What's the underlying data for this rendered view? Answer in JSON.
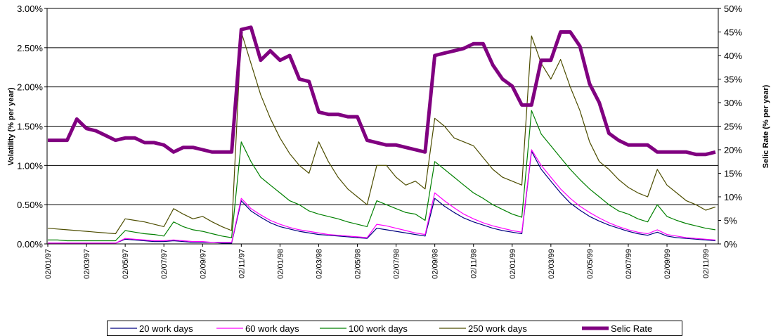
{
  "chart_data": {
    "type": "line",
    "y_label": "Volatility (% per year)",
    "y2_label": "Selic Rate (% per year)",
    "categories": [
      "02/01/97",
      null,
      null,
      null,
      "02/03/97",
      null,
      null,
      null,
      "02/05/97",
      null,
      null,
      null,
      "02/07/97",
      null,
      null,
      null,
      "02/09/97",
      null,
      null,
      null,
      "02/11/97",
      null,
      null,
      null,
      "02/01/98",
      null,
      null,
      null,
      "02/03/98",
      null,
      null,
      null,
      "02/05/98",
      null,
      null,
      null,
      "02/07/98",
      null,
      null,
      null,
      "02/09/98",
      null,
      null,
      null,
      "02/11/98",
      null,
      null,
      null,
      "02/01/99",
      null,
      null,
      null,
      "02/03/99",
      null,
      null,
      null,
      "02/05/99",
      null,
      null,
      null,
      "02/07/99",
      null,
      null,
      null,
      "02/09/99",
      null,
      null,
      null,
      "02/11/99",
      null
    ],
    "ylim": [
      0,
      3
    ],
    "yticks": [
      {
        "value": 0,
        "label": "0.00%"
      },
      {
        "value": 0.5,
        "label": "0.50%"
      },
      {
        "value": 1,
        "label": "1.00%"
      },
      {
        "value": 1.5,
        "label": "1.50%"
      },
      {
        "value": 2,
        "label": "2.00%"
      },
      {
        "value": 2.5,
        "label": "2.50%"
      },
      {
        "value": 3,
        "label": "3.00%"
      }
    ],
    "y2lim": [
      0,
      50
    ],
    "y2ticks": [
      {
        "value": 0,
        "label": "0%"
      },
      {
        "value": 5,
        "label": "5%"
      },
      {
        "value": 10,
        "label": "10%"
      },
      {
        "value": 15,
        "label": "15%"
      },
      {
        "value": 20,
        "label": "20%"
      },
      {
        "value": 25,
        "label": "25%"
      },
      {
        "value": 30,
        "label": "30%"
      },
      {
        "value": 35,
        "label": "35%"
      },
      {
        "value": 40,
        "label": "40%"
      },
      {
        "value": 45,
        "label": "45%"
      },
      {
        "value": 50,
        "label": "50%"
      }
    ],
    "grid": true,
    "legend": "bottom",
    "series": [
      {
        "name": "20 work days",
        "color": "#000080",
        "width": 1.2,
        "values": [
          0.01,
          0.01,
          0.01,
          0.01,
          0.01,
          0.01,
          0.01,
          0.01,
          0.06,
          0.05,
          0.04,
          0.03,
          0.03,
          0.04,
          0.03,
          0.02,
          0.02,
          0.02,
          0.01,
          0.01,
          0.55,
          0.42,
          0.34,
          0.27,
          0.22,
          0.19,
          0.16,
          0.14,
          0.12,
          0.11,
          0.1,
          0.09,
          0.08,
          0.07,
          0.2,
          0.18,
          0.16,
          0.14,
          0.12,
          0.1,
          0.58,
          0.48,
          0.4,
          0.33,
          0.28,
          0.24,
          0.2,
          0.17,
          0.15,
          0.13,
          1.18,
          0.95,
          0.8,
          0.65,
          0.52,
          0.43,
          0.35,
          0.29,
          0.24,
          0.2,
          0.16,
          0.13,
          0.11,
          0.15,
          0.1,
          0.08,
          0.07,
          0.06,
          0.05,
          0.04
        ]
      },
      {
        "name": "60 work days",
        "color": "#ff00ff",
        "width": 1.2,
        "values": [
          0.01,
          0.01,
          0.01,
          0.01,
          0.01,
          0.01,
          0.01,
          0.01,
          0.07,
          0.06,
          0.05,
          0.04,
          0.04,
          0.05,
          0.04,
          0.03,
          0.03,
          0.02,
          0.02,
          0.02,
          0.58,
          0.45,
          0.37,
          0.3,
          0.25,
          0.21,
          0.18,
          0.16,
          0.14,
          0.12,
          0.11,
          0.1,
          0.09,
          0.08,
          0.25,
          0.23,
          0.2,
          0.17,
          0.14,
          0.12,
          0.65,
          0.55,
          0.46,
          0.38,
          0.32,
          0.27,
          0.23,
          0.2,
          0.17,
          0.15,
          1.2,
          1.0,
          0.85,
          0.7,
          0.58,
          0.48,
          0.4,
          0.33,
          0.27,
          0.22,
          0.18,
          0.15,
          0.13,
          0.18,
          0.12,
          0.1,
          0.08,
          0.07,
          0.06,
          0.05
        ]
      },
      {
        "name": "100 work days",
        "color": "#008000",
        "width": 1.2,
        "values": [
          0.05,
          0.05,
          0.04,
          0.04,
          0.04,
          0.04,
          0.04,
          0.04,
          0.17,
          0.15,
          0.13,
          0.12,
          0.1,
          0.28,
          0.22,
          0.18,
          0.16,
          0.13,
          0.1,
          0.08,
          1.3,
          1.05,
          0.85,
          0.75,
          0.65,
          0.55,
          0.5,
          0.42,
          0.38,
          0.35,
          0.32,
          0.28,
          0.25,
          0.22,
          0.55,
          0.5,
          0.45,
          0.4,
          0.38,
          0.3,
          1.05,
          0.95,
          0.85,
          0.75,
          0.65,
          0.58,
          0.5,
          0.44,
          0.38,
          0.34,
          1.7,
          1.4,
          1.25,
          1.1,
          0.95,
          0.82,
          0.7,
          0.6,
          0.5,
          0.42,
          0.38,
          0.32,
          0.28,
          0.5,
          0.35,
          0.3,
          0.26,
          0.23,
          0.2,
          0.18
        ]
      },
      {
        "name": "250 work days",
        "color": "#4d4d00",
        "width": 1.2,
        "values": [
          0.2,
          0.19,
          0.18,
          0.17,
          0.16,
          0.15,
          0.14,
          0.13,
          0.32,
          0.3,
          0.28,
          0.25,
          0.22,
          0.45,
          0.38,
          0.32,
          0.35,
          0.28,
          0.22,
          0.17,
          2.7,
          2.3,
          1.9,
          1.6,
          1.35,
          1.15,
          1.0,
          0.9,
          1.3,
          1.05,
          0.85,
          0.7,
          0.6,
          0.5,
          1.0,
          1.0,
          0.85,
          0.75,
          0.8,
          0.7,
          1.6,
          1.5,
          1.35,
          1.3,
          1.25,
          1.1,
          0.95,
          0.85,
          0.8,
          0.75,
          2.65,
          2.3,
          2.1,
          2.35,
          2.0,
          1.7,
          1.3,
          1.05,
          0.95,
          0.82,
          0.72,
          0.65,
          0.6,
          0.95,
          0.75,
          0.65,
          0.55,
          0.5,
          0.43,
          0.47
        ]
      },
      {
        "name": "Selic Rate",
        "color": "#800080",
        "width": 5,
        "axis": "y2",
        "values": [
          22,
          22,
          22,
          26.5,
          24.5,
          24,
          23,
          22,
          22.5,
          22.5,
          21.5,
          21.5,
          21,
          19.5,
          20.5,
          20.5,
          20,
          19.5,
          19.5,
          19.5,
          45.5,
          46,
          39,
          41,
          39,
          40,
          35,
          34.5,
          28,
          27.5,
          27.5,
          27,
          27,
          22,
          21.5,
          21,
          21,
          20.5,
          20,
          19.5,
          40,
          40.5,
          41,
          41.5,
          42.5,
          42.5,
          38,
          35,
          33.5,
          29.5,
          29.5,
          39,
          39,
          45,
          45,
          42,
          34,
          30,
          23.5,
          22,
          21,
          21,
          21,
          19.5,
          19.5,
          19.5,
          19.5,
          19,
          19,
          19.5
        ]
      }
    ]
  }
}
